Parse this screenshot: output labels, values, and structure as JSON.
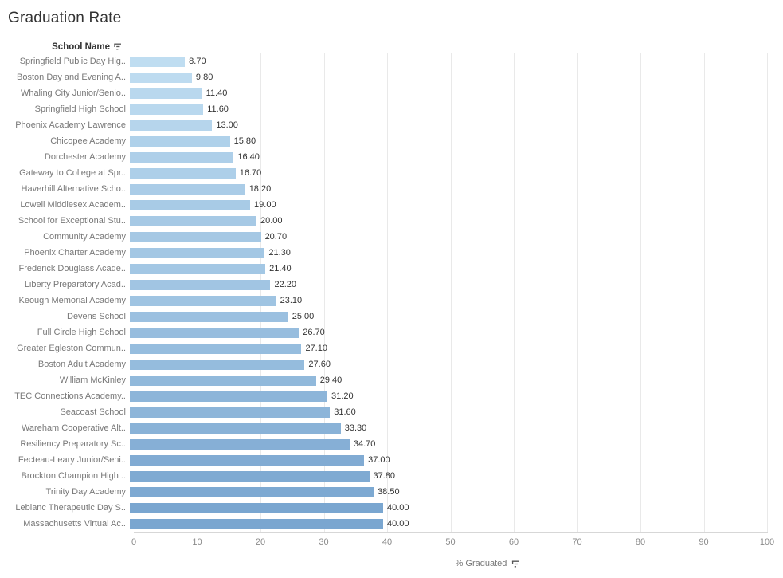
{
  "title": "Graduation Rate",
  "row_header": {
    "label": "School Name",
    "sort_icon": "sort-descending-icon"
  },
  "axis": {
    "label": "% Graduated",
    "ticks": [
      0,
      10,
      20,
      30,
      40,
      50,
      60,
      70,
      80,
      90,
      100
    ],
    "sort_icon": "sort-descending-icon"
  },
  "colors": {
    "bar_light": "#BFDDF1",
    "bar_dark": "#7AA6D0",
    "gridline": "#E9E9E9",
    "axis_line": "#D7D7D7",
    "title_text": "#333333",
    "row_label_text": "#787878",
    "value_text": "#333333",
    "tick_text": "#8A8A8A"
  },
  "chart_data": {
    "type": "bar",
    "orientation": "horizontal",
    "title": "Graduation Rate",
    "xlabel": "% Graduated",
    "ylabel": "School Name",
    "xlim": [
      0,
      100
    ],
    "grid": true,
    "sort": "ascending",
    "legend": "none",
    "value_format": "0.00",
    "categories": [
      "Springfield Public Day Hig..",
      "Boston Day and Evening A..",
      "Whaling City Junior/Senio..",
      "Springfield High School",
      "Phoenix Academy Lawrence",
      "Chicopee Academy",
      "Dorchester Academy",
      "Gateway to College at Spr..",
      "Haverhill Alternative Scho..",
      "Lowell Middlesex Academ..",
      "School for Exceptional Stu..",
      "Community Academy",
      "Phoenix Charter Academy",
      "Frederick Douglass Acade..",
      "Liberty Preparatory Acad..",
      "Keough Memorial Academy",
      "Devens School",
      "Full Circle High School",
      "Greater Egleston Commun..",
      "Boston Adult Academy",
      "William McKinley",
      "TEC Connections Academy..",
      "Seacoast School",
      "Wareham Cooperative Alt..",
      "Resiliency Preparatory Sc..",
      "Fecteau-Leary Junior/Seni..",
      "Brockton Champion High ..",
      "Trinity Day Academy",
      "Leblanc Therapeutic Day S..",
      "Massachusetts Virtual Ac.."
    ],
    "values": [
      8.7,
      9.8,
      11.4,
      11.6,
      13.0,
      15.8,
      16.4,
      16.7,
      18.2,
      19.0,
      20.0,
      20.7,
      21.3,
      21.4,
      22.2,
      23.1,
      25.0,
      26.7,
      27.1,
      27.6,
      29.4,
      31.2,
      31.6,
      33.3,
      34.7,
      37.0,
      37.8,
      38.5,
      40.0,
      40.0
    ]
  }
}
